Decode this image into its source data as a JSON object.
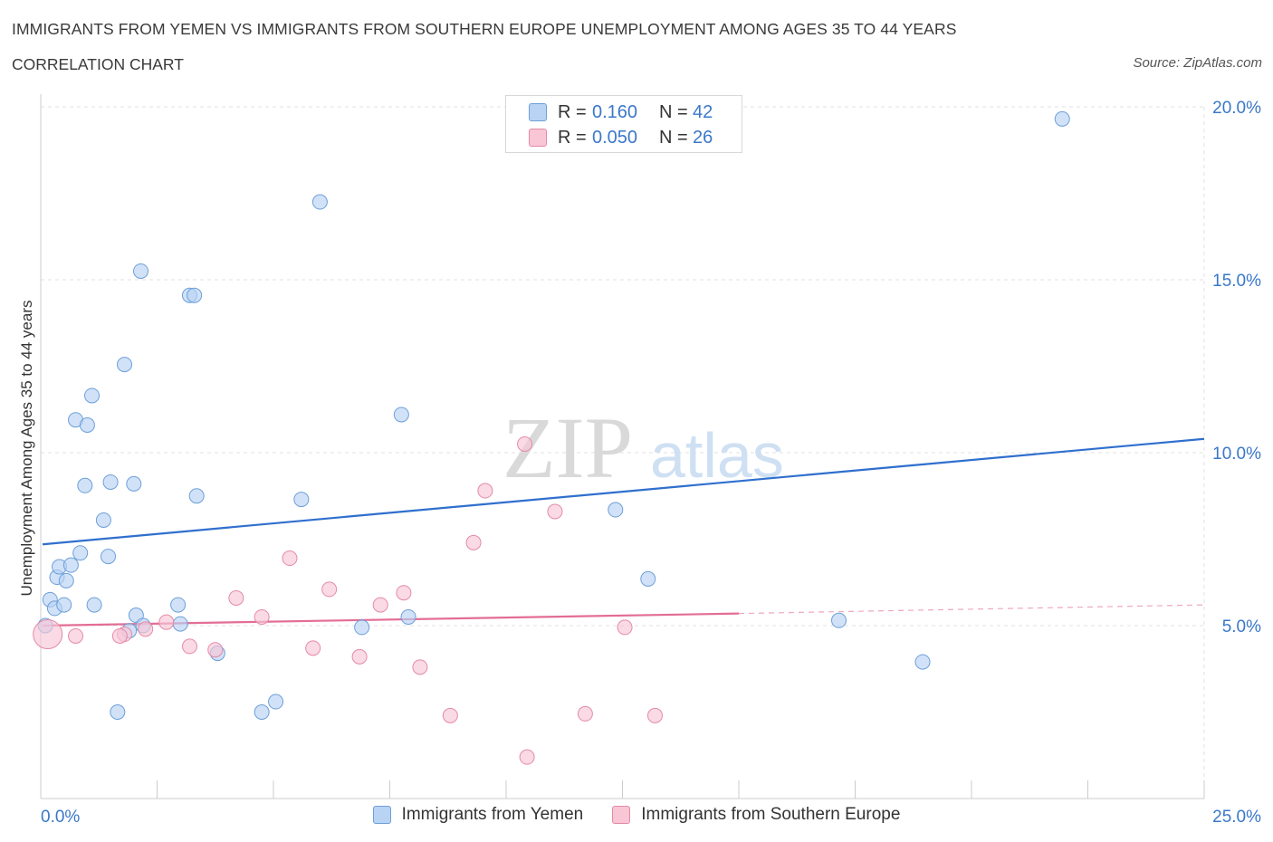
{
  "title": "IMMIGRANTS FROM YEMEN VS IMMIGRANTS FROM SOUTHERN EUROPE UNEMPLOYMENT AMONG AGES 35 TO 44 YEARS",
  "subtitle": "CORRELATION CHART",
  "source": "Source: ZipAtlas.com",
  "watermark": {
    "zip": "ZIP",
    "atlas": "atlas"
  },
  "legend_top": [
    {
      "r_label": "R =",
      "r_value": "0.160",
      "n_label": "N =",
      "n_value": "42"
    },
    {
      "r_label": "R =",
      "r_value": "0.050",
      "n_label": "N =",
      "n_value": "26"
    }
  ],
  "legend_bottom": [
    "Immigrants from Yemen",
    "Immigrants from Southern Europe"
  ],
  "colors": {
    "blue_fill": "#b9d3f5",
    "blue_stroke": "#6d9fd8",
    "blue_line": "#2f6fce",
    "pink_fill": "#f8c6d5",
    "pink_stroke": "#e48aa8",
    "pink_line": "#e36d96",
    "grid": "#e0e0e0",
    "axis_text": "#3a78c9"
  },
  "chart_data": {
    "type": "scatter",
    "title": "IMMIGRANTS FROM YEMEN VS IMMIGRANTS FROM SOUTHERN EUROPE UNEMPLOYMENT AMONG AGES 35 TO 44 YEARS",
    "xlabel": "",
    "ylabel": "Unemployment Among Ages 35 to 44 years",
    "xlim": [
      0,
      25
    ],
    "ylim": [
      0,
      20
    ],
    "x_tick_labels": [
      "0.0%",
      "25.0%"
    ],
    "y_ticks": [
      5,
      10,
      15,
      20
    ],
    "y_tick_labels": [
      "5.0%",
      "10.0%",
      "15.0%",
      "20.0%"
    ],
    "grid": true,
    "series": [
      {
        "name": "Immigrants from Yemen",
        "color": "blue",
        "R": 0.16,
        "N": 42,
        "points": [
          [
            0.1,
            5.0
          ],
          [
            0.2,
            5.75
          ],
          [
            0.3,
            5.5
          ],
          [
            0.35,
            6.4
          ],
          [
            0.4,
            6.7
          ],
          [
            0.5,
            5.6
          ],
          [
            0.55,
            6.3
          ],
          [
            0.65,
            6.75
          ],
          [
            0.75,
            10.95
          ],
          [
            0.85,
            7.1
          ],
          [
            0.95,
            9.05
          ],
          [
            1.0,
            10.8
          ],
          [
            1.1,
            11.65
          ],
          [
            1.15,
            5.6
          ],
          [
            1.35,
            8.05
          ],
          [
            1.45,
            7.0
          ],
          [
            1.5,
            9.15
          ],
          [
            1.65,
            2.5
          ],
          [
            1.8,
            12.55
          ],
          [
            1.9,
            4.85
          ],
          [
            2.0,
            9.1
          ],
          [
            2.05,
            5.3
          ],
          [
            2.15,
            15.25
          ],
          [
            2.2,
            5.0
          ],
          [
            2.95,
            5.6
          ],
          [
            3.0,
            5.05
          ],
          [
            3.2,
            14.55
          ],
          [
            3.3,
            14.55
          ],
          [
            3.35,
            8.75
          ],
          [
            3.8,
            4.2
          ],
          [
            4.75,
            2.5
          ],
          [
            5.05,
            2.8
          ],
          [
            5.6,
            8.65
          ],
          [
            6.0,
            17.25
          ],
          [
            6.9,
            4.95
          ],
          [
            7.75,
            11.1
          ],
          [
            7.9,
            5.25
          ],
          [
            12.35,
            8.35
          ],
          [
            13.05,
            6.35
          ],
          [
            17.15,
            5.15
          ],
          [
            18.95,
            3.95
          ],
          [
            21.95,
            19.65
          ]
        ]
      },
      {
        "name": "Immigrants from Southern Europe",
        "color": "pink",
        "R": 0.05,
        "N": 26,
        "points": [
          [
            0.15,
            4.75
          ],
          [
            0.75,
            4.7
          ],
          [
            1.8,
            4.75
          ],
          [
            1.7,
            4.7
          ],
          [
            2.25,
            4.9
          ],
          [
            2.7,
            5.1
          ],
          [
            3.2,
            4.4
          ],
          [
            3.75,
            4.3
          ],
          [
            4.2,
            5.8
          ],
          [
            4.75,
            5.25
          ],
          [
            5.35,
            6.95
          ],
          [
            5.85,
            4.35
          ],
          [
            6.2,
            6.05
          ],
          [
            6.85,
            4.1
          ],
          [
            7.3,
            5.6
          ],
          [
            7.8,
            5.95
          ],
          [
            8.15,
            3.8
          ],
          [
            8.8,
            2.4
          ],
          [
            9.3,
            7.4
          ],
          [
            9.55,
            8.9
          ],
          [
            10.4,
            10.25
          ],
          [
            10.45,
            1.2
          ],
          [
            11.05,
            8.3
          ],
          [
            11.7,
            2.45
          ],
          [
            12.55,
            4.95
          ],
          [
            13.2,
            2.4
          ]
        ]
      }
    ],
    "trend_lines": [
      {
        "series": "Immigrants from Yemen",
        "x": [
          0,
          25
        ],
        "y": [
          7.35,
          10.4
        ]
      },
      {
        "series": "Immigrants from Southern Europe",
        "x": [
          0,
          15
        ],
        "y": [
          5.0,
          5.35
        ],
        "dashed_extension": {
          "x": [
            15,
            25
          ],
          "y": [
            5.35,
            5.6
          ]
        }
      }
    ]
  }
}
